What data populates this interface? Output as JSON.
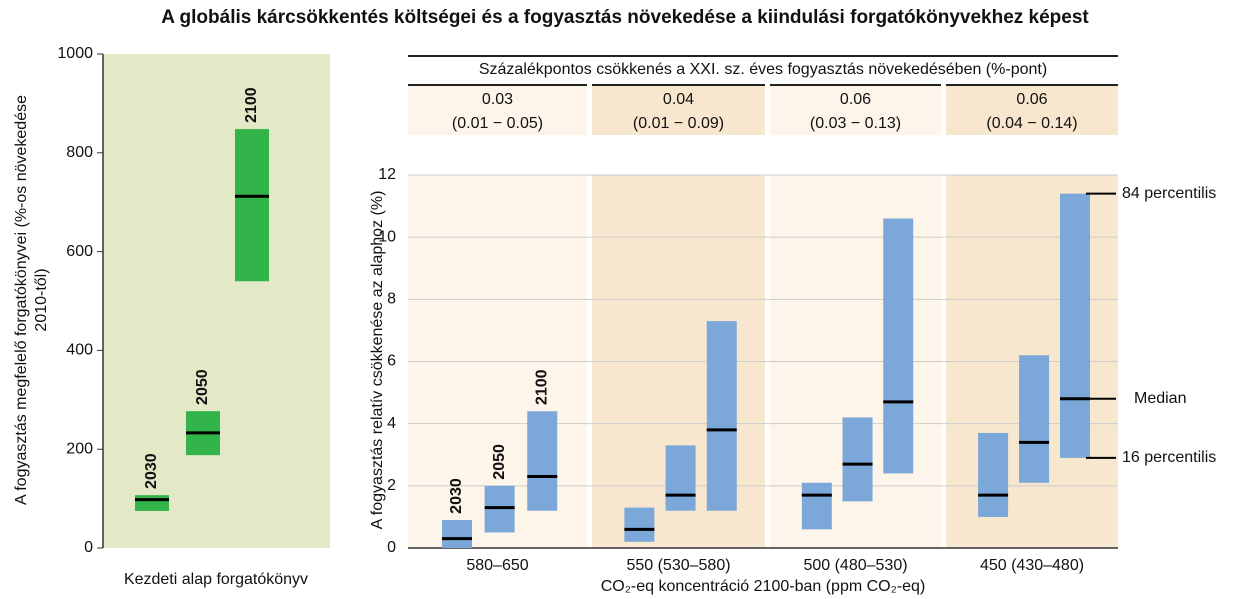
{
  "title": "A globális kárcsökkentés költségei és a fogyasztás növekedése a kiindulási forgatókönyvekhez képest",
  "chart_data": [
    {
      "type": "range",
      "ylabel": [
        "A fogyasztás megfelelő forgatókönyvei (%-os növekedése",
        "2010-től)"
      ],
      "xlabel": "Kezdeti alap forgatókönyv",
      "categories": [
        "2030",
        "2050",
        "2100"
      ],
      "low": [
        75,
        188,
        540
      ],
      "high": [
        107,
        277,
        848
      ],
      "median": [
        98,
        233,
        712
      ],
      "color": "#33b44a",
      "background": "#e3e8c6",
      "ylim": [
        0,
        1000
      ],
      "yticks": [
        0,
        200,
        400,
        600,
        800,
        1000
      ],
      "grid": false
    },
    {
      "type": "grouped-range",
      "ylabel": "A fogyasztás relatív csökkenése az alaphoz (%)",
      "xlabel": "CO₂-eq koncentráció 2100-ban (ppm CO₂-eq)",
      "categories": [
        "580–650",
        "550 (530–580)",
        "500 (480–530)",
        "450 (430–480)"
      ],
      "backgrounds": [
        "#fdf5ea",
        "#f8e7cf",
        "#fdf5ea",
        "#f8e7cf"
      ],
      "header": {
        "title": "Százalékpontos csökkenés a XXI. sz. éves fogyasztás növekedésében (%-pont)",
        "cells": [
          [
            "0.03",
            "(0.01 − 0.05)"
          ],
          [
            "0.04",
            "(0.01 − 0.09)"
          ],
          [
            "0.06",
            "(0.03 − 0.13)"
          ],
          [
            "0.06",
            "(0.04 − 0.14)"
          ]
        ]
      },
      "series": [
        {
          "name": "2030",
          "low": [
            0,
            0.2,
            0.6,
            1.0
          ],
          "high": [
            0.9,
            1.3,
            2.1,
            3.7
          ],
          "median": [
            0.3,
            0.6,
            1.7,
            1.7
          ]
        },
        {
          "name": "2050",
          "low": [
            0.5,
            1.2,
            1.5,
            2.1
          ],
          "high": [
            2.0,
            3.3,
            4.2,
            6.2
          ],
          "median": [
            1.3,
            1.7,
            2.7,
            3.4
          ]
        },
        {
          "name": "2100",
          "low": [
            1.2,
            1.2,
            2.4,
            2.9
          ],
          "high": [
            4.4,
            7.3,
            10.6,
            11.4
          ],
          "median": [
            2.3,
            3.8,
            4.7,
            4.8
          ]
        }
      ],
      "color": "#7ba7d9",
      "annotations": [
        "84 percentilis",
        "Median",
        "16 percentilis"
      ],
      "ylim": [
        0,
        12
      ],
      "yticks": [
        0,
        2,
        4,
        6,
        8,
        10,
        12
      ],
      "grid": true
    }
  ]
}
